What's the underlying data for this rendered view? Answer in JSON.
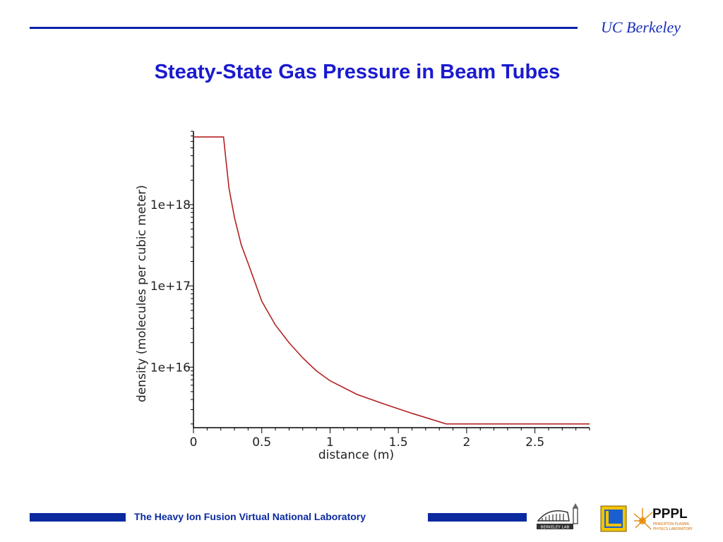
{
  "header": {
    "brand": "UC Berkeley",
    "title": "Steaty-State Gas Pressure in Beam Tubes"
  },
  "footer": {
    "text": "The Heavy Ion Fusion Virtual National Laboratory",
    "logos": [
      "berkeley-lab-logo",
      "square-emblem-logo",
      "pppl-logo"
    ],
    "pppl_label": "PPPL",
    "pppl_sub1": "PRINCETON PLASMA",
    "pppl_sub2": "PHYSICS LABORATORY",
    "lbl_label": "BERKELEY LAB"
  },
  "colors": {
    "accent": "#0b2aa0",
    "title": "#1a1ad0",
    "series": "#b22222"
  },
  "chart_data": {
    "type": "line",
    "title": "",
    "xlabel": "distance (m)",
    "ylabel": "density (molecules per cubic meter)",
    "ylog": true,
    "xlim": [
      0,
      2.9
    ],
    "ylim": [
      1800000000000000.0,
      8e+18
    ],
    "xticks": [
      "0",
      "0.5",
      "1",
      "1.5",
      "2",
      "2.5"
    ],
    "xtick_values": [
      0,
      0.5,
      1,
      1.5,
      2,
      2.5
    ],
    "yticks": [
      "1e+16",
      "1e+17",
      "1e+18"
    ],
    "ytick_values": [
      1e+16,
      1e+17,
      1e+18
    ],
    "series": [
      {
        "x": [
          0,
          0.22,
          0.24,
          0.26,
          0.3,
          0.35,
          0.4,
          0.5,
          0.6,
          0.7,
          0.8,
          0.9,
          1.0,
          1.2,
          1.4,
          1.6,
          1.85,
          2.9
        ],
        "y": [
          6.8e+18,
          6.8e+18,
          3.3e+18,
          1.6e+18,
          7e+17,
          3.2e+17,
          1.9e+17,
          6.5e+16,
          3.3e+16,
          2e+16,
          1.3e+16,
          9000000000000000.0,
          6800000000000000.0,
          4600000000000000.0,
          3500000000000000.0,
          2700000000000000.0,
          2000000000000000.0,
          2000000000000000.0
        ]
      }
    ]
  }
}
